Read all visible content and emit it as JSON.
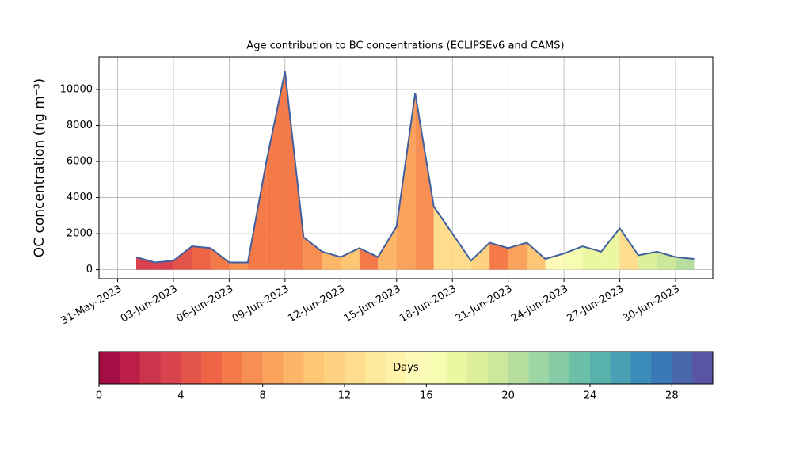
{
  "chart_data": {
    "type": "area",
    "title": "Age contribution to BC concentrations (ECLIPSEv6 and CAMS)",
    "y_label": "OC concentration (ng m⁻³)",
    "x": [
      "2023-06-01",
      "2023-06-02",
      "2023-06-03",
      "2023-06-04",
      "2023-06-05",
      "2023-06-06",
      "2023-06-07",
      "2023-06-08",
      "2023-06-09",
      "2023-06-10",
      "2023-06-11",
      "2023-06-12",
      "2023-06-13",
      "2023-06-14",
      "2023-06-15",
      "2023-06-16",
      "2023-06-17",
      "2023-06-18",
      "2023-06-19",
      "2023-06-20",
      "2023-06-21",
      "2023-06-22",
      "2023-06-23",
      "2023-06-24",
      "2023-06-25",
      "2023-06-26",
      "2023-06-27",
      "2023-06-28",
      "2023-06-29",
      "2023-06-30",
      "2023-07-01"
    ],
    "values": [
      700,
      400,
      500,
      1300,
      1200,
      400,
      400,
      6000,
      11000,
      1800,
      1000,
      700,
      1200,
      700,
      2400,
      9800,
      3500,
      2000,
      500,
      1500,
      1200,
      1500,
      600,
      900,
      1300,
      1000,
      2300,
      800,
      1000,
      700,
      600
    ],
    "fill_age": [
      3,
      3,
      4,
      5,
      6,
      7,
      6,
      6,
      6,
      7,
      9,
      10,
      6,
      9,
      8,
      7,
      12,
      12,
      11,
      6,
      8,
      10,
      15,
      16,
      17,
      17,
      12,
      18,
      19,
      20,
      20
    ],
    "line_color": "#3f5f9f",
    "xlim": [
      "2023-05-30",
      "2023-07-02"
    ],
    "xticks": [
      {
        "value": "2023-05-31",
        "label": "31-May-2023"
      },
      {
        "value": "2023-06-03",
        "label": "03-Jun-2023"
      },
      {
        "value": "2023-06-06",
        "label": "06-Jun-2023"
      },
      {
        "value": "2023-06-09",
        "label": "09-Jun-2023"
      },
      {
        "value": "2023-06-12",
        "label": "12-Jun-2023"
      },
      {
        "value": "2023-06-15",
        "label": "15-Jun-2023"
      },
      {
        "value": "2023-06-18",
        "label": "18-Jun-2023"
      },
      {
        "value": "2023-06-21",
        "label": "21-Jun-2023"
      },
      {
        "value": "2023-06-24",
        "label": "24-Jun-2023"
      },
      {
        "value": "2023-06-27",
        "label": "27-Jun-2023"
      },
      {
        "value": "2023-06-30",
        "label": "30-Jun-2023"
      }
    ],
    "ylim": [
      -500,
      11800
    ],
    "yticks": [
      0,
      2000,
      4000,
      6000,
      8000,
      10000
    ],
    "grid": true,
    "colorbar": {
      "label": "Days",
      "lim": [
        0,
        30
      ],
      "ticks": [
        0,
        4,
        8,
        12,
        16,
        20,
        24,
        28
      ],
      "colors": [
        "#a50d45",
        "#bb1f48",
        "#cc334c",
        "#d8434e",
        "#e45549",
        "#ee6445",
        "#f57a49",
        "#f88f52",
        "#fba35c",
        "#fdb668",
        "#fdc574",
        "#fed281",
        "#fede8e",
        "#fee99b",
        "#fff2a9",
        "#fefbb9",
        "#f7fcb3",
        "#ecf7a2",
        "#deef9b",
        "#cbe89c",
        "#b6df9f",
        "#9dd5a4",
        "#84cba6",
        "#6bc0a7",
        "#58b1ab",
        "#4a9fb3",
        "#3b8cbb",
        "#3a79b7",
        "#4866ac",
        "#5954a4"
      ]
    }
  }
}
